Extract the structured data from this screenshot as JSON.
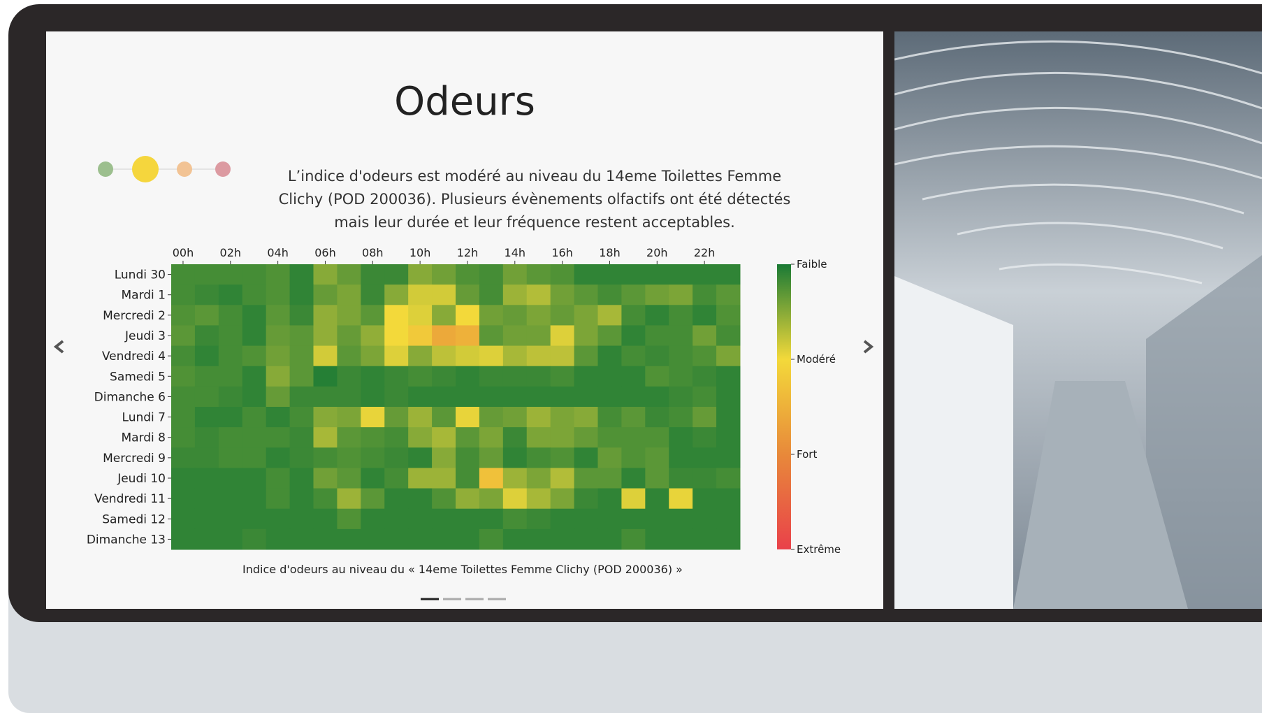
{
  "header": {
    "title": "Odeurs",
    "description": "L’indice d'odeurs est modéré au niveau du 14eme Toilettes Femme Clichy (POD 200036). Plusieurs évènements olfactifs ont été détectés mais leur durée et leur fréquence restent acceptables."
  },
  "chart_data": {
    "type": "heatmap",
    "caption": "Indice d'odeurs au niveau du « 14eme Toilettes Femme Clichy (POD 200036) »",
    "categories": [
      "00h",
      null,
      "02h",
      null,
      "04h",
      null,
      "06h",
      null,
      "08h",
      null,
      "10h",
      null,
      "12h",
      null,
      "14h",
      null,
      "16h",
      null,
      "18h",
      null,
      "20h",
      null,
      "22h",
      null
    ],
    "rows": [
      "Lundi 30",
      "Mardi 1",
      "Mercredi 2",
      "Jeudi 3",
      "Vendredi 4",
      "Samedi 5",
      "Dimanche 6",
      "Lundi 7",
      "Mardi 8",
      "Mercredi 9",
      "Jeudi 10",
      "Vendredi 11",
      "Samedi 12",
      "Dimanche 13"
    ],
    "values": [
      [
        0.2,
        0.2,
        0.2,
        0.2,
        0.25,
        0.1,
        0.5,
        0.35,
        0.15,
        0.15,
        0.5,
        0.4,
        0.25,
        0.2,
        0.4,
        0.3,
        0.25,
        0.1,
        0.1,
        0.1,
        0.1,
        0.1,
        0.1,
        0.1
      ],
      [
        0.2,
        0.15,
        0.1,
        0.2,
        0.25,
        0.1,
        0.35,
        0.45,
        0.15,
        0.5,
        0.85,
        0.85,
        0.35,
        0.2,
        0.6,
        0.7,
        0.4,
        0.3,
        0.2,
        0.3,
        0.4,
        0.45,
        0.2,
        0.3
      ],
      [
        0.25,
        0.3,
        0.2,
        0.1,
        0.3,
        0.15,
        0.55,
        0.45,
        0.3,
        1.0,
        0.9,
        0.5,
        1.0,
        0.4,
        0.35,
        0.45,
        0.35,
        0.45,
        0.65,
        0.2,
        0.1,
        0.2,
        0.1,
        0.25
      ],
      [
        0.3,
        0.15,
        0.2,
        0.1,
        0.35,
        0.3,
        0.55,
        0.35,
        0.55,
        1.0,
        1.2,
        1.6,
        1.5,
        0.3,
        0.4,
        0.4,
        0.9,
        0.45,
        0.3,
        0.1,
        0.2,
        0.2,
        0.4,
        0.2
      ],
      [
        0.2,
        0.1,
        0.2,
        0.25,
        0.4,
        0.3,
        0.85,
        0.3,
        0.45,
        0.9,
        0.5,
        0.75,
        0.85,
        0.9,
        0.65,
        0.75,
        0.75,
        0.3,
        0.1,
        0.2,
        0.15,
        0.2,
        0.25,
        0.45
      ],
      [
        0.25,
        0.2,
        0.2,
        0.1,
        0.5,
        0.3,
        0.05,
        0.15,
        0.1,
        0.15,
        0.2,
        0.15,
        0.1,
        0.15,
        0.15,
        0.15,
        0.2,
        0.1,
        0.1,
        0.1,
        0.25,
        0.2,
        0.15,
        0.1
      ],
      [
        0.2,
        0.2,
        0.15,
        0.1,
        0.35,
        0.15,
        0.15,
        0.15,
        0.1,
        0.15,
        0.1,
        0.1,
        0.1,
        0.1,
        0.1,
        0.1,
        0.1,
        0.1,
        0.1,
        0.1,
        0.1,
        0.15,
        0.2,
        0.1
      ],
      [
        0.2,
        0.1,
        0.1,
        0.2,
        0.1,
        0.2,
        0.5,
        0.45,
        0.95,
        0.35,
        0.6,
        0.3,
        0.95,
        0.35,
        0.4,
        0.6,
        0.45,
        0.5,
        0.2,
        0.3,
        0.15,
        0.2,
        0.35,
        0.1
      ],
      [
        0.2,
        0.15,
        0.2,
        0.2,
        0.2,
        0.15,
        0.65,
        0.3,
        0.25,
        0.2,
        0.5,
        0.65,
        0.3,
        0.45,
        0.15,
        0.45,
        0.45,
        0.35,
        0.25,
        0.25,
        0.25,
        0.1,
        0.15,
        0.1
      ],
      [
        0.15,
        0.15,
        0.2,
        0.2,
        0.1,
        0.15,
        0.2,
        0.25,
        0.2,
        0.15,
        0.1,
        0.5,
        0.2,
        0.35,
        0.1,
        0.2,
        0.25,
        0.1,
        0.35,
        0.25,
        0.3,
        0.1,
        0.1,
        0.1
      ],
      [
        0.1,
        0.1,
        0.1,
        0.1,
        0.2,
        0.1,
        0.4,
        0.3,
        0.1,
        0.2,
        0.6,
        0.6,
        0.2,
        1.3,
        0.6,
        0.45,
        0.7,
        0.3,
        0.3,
        0.1,
        0.3,
        0.15,
        0.15,
        0.2
      ],
      [
        0.1,
        0.1,
        0.1,
        0.1,
        0.2,
        0.1,
        0.2,
        0.6,
        0.3,
        0.1,
        0.1,
        0.25,
        0.55,
        0.45,
        0.9,
        0.65,
        0.45,
        0.15,
        0.1,
        0.9,
        0.1,
        0.95,
        0.1,
        0.1
      ],
      [
        0.1,
        0.1,
        0.1,
        0.1,
        0.1,
        0.1,
        0.1,
        0.25,
        0.1,
        0.1,
        0.1,
        0.1,
        0.1,
        0.1,
        0.2,
        0.15,
        0.1,
        0.1,
        0.1,
        0.1,
        0.1,
        0.1,
        0.1,
        0.1
      ],
      [
        0.1,
        0.1,
        0.1,
        0.15,
        0.1,
        0.1,
        0.1,
        0.1,
        0.1,
        0.1,
        0.1,
        0.1,
        0.1,
        0.2,
        0.1,
        0.1,
        0.1,
        0.1,
        0.1,
        0.2,
        0.1,
        0.1,
        0.1,
        0.1
      ]
    ],
    "colorbar_lim": [
      0,
      3
    ],
    "colorbar_ticks": [
      {
        "value": 0,
        "label": "Faible"
      },
      {
        "value": 1,
        "label": "Modéré"
      },
      {
        "value": 2,
        "label": "Fort"
      },
      {
        "value": 3,
        "label": "Extrême"
      }
    ],
    "colorscale": [
      "#1a7a35",
      "#f3d93a",
      "#e8893a",
      "#e9414a"
    ]
  }
}
